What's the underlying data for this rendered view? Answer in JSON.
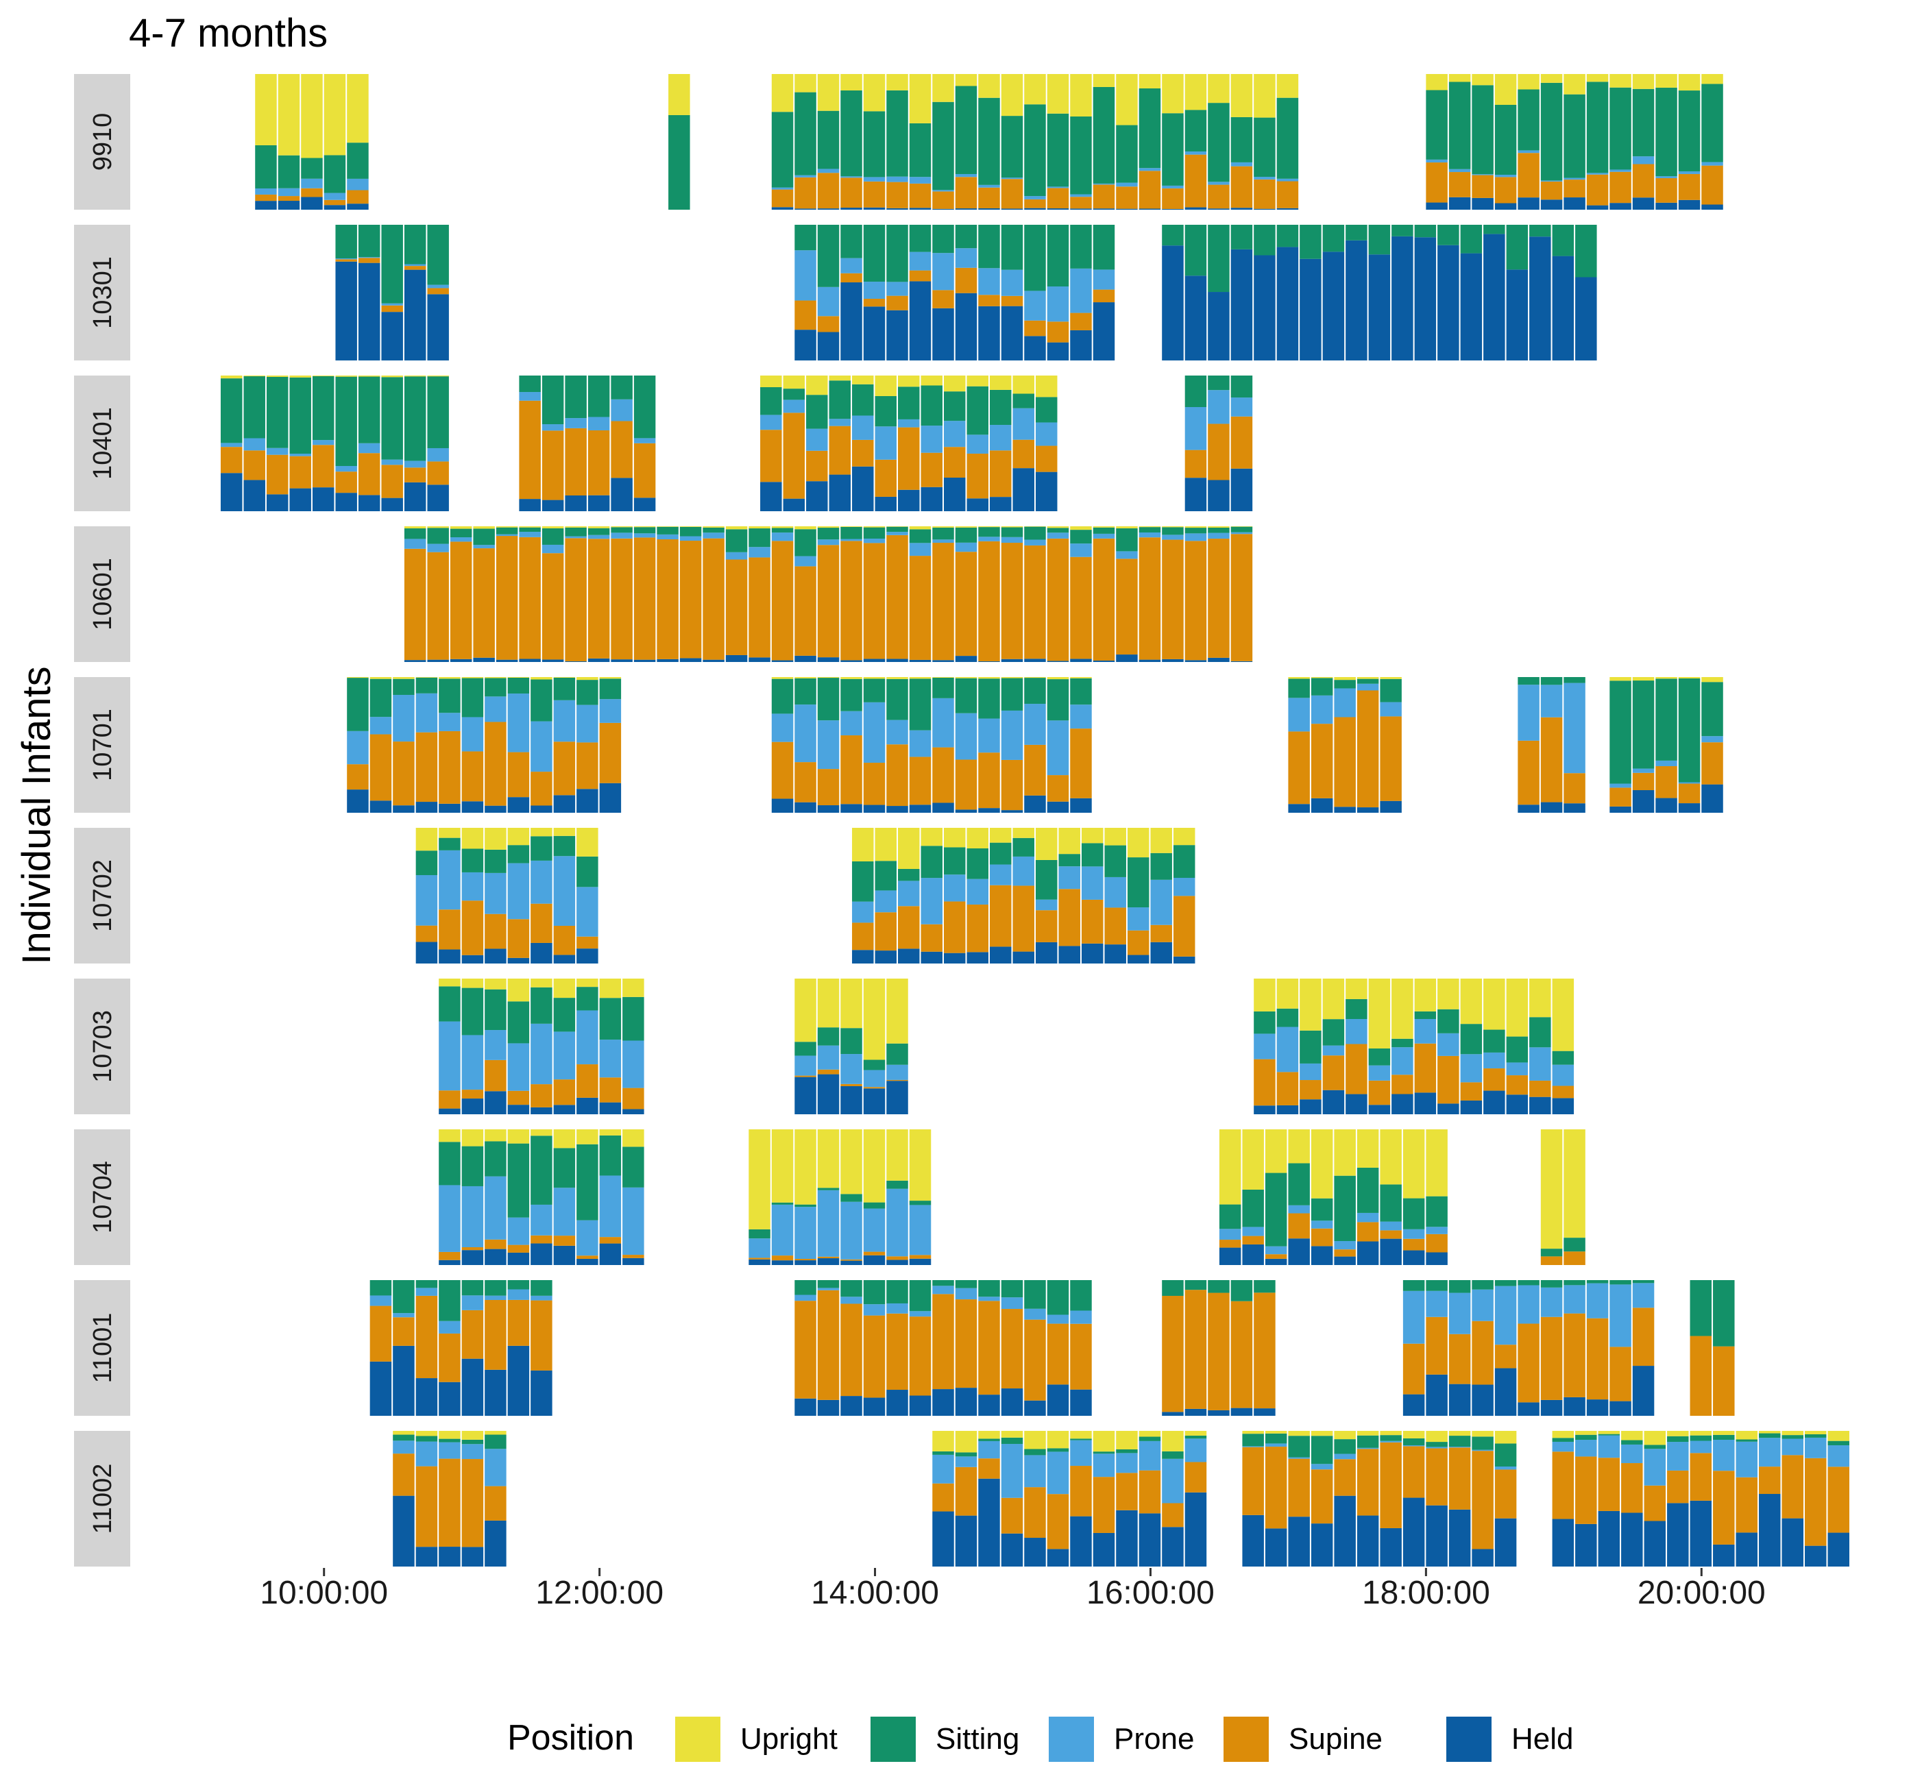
{
  "chart_data": {
    "type": "stacked-bar",
    "title": "4-7 months",
    "ylabel": "Individual Infants",
    "xlabel": "",
    "x_ticks": [
      "10:00:00",
      "12:00:00",
      "14:00:00",
      "16:00:00",
      "18:00:00",
      "20:00:00"
    ],
    "xlim": [
      "08:35:00",
      "21:05:00"
    ],
    "bin_minutes": 10,
    "ylim": [
      0,
      1
    ],
    "legend": {
      "title": "Position",
      "placement": "bottom",
      "entries": [
        "Upright",
        "Sitting",
        "Prone",
        "Supine",
        "Held"
      ]
    },
    "colors": {
      "Upright": "#EAE13A",
      "Sitting": "#139168",
      "Prone": "#4BA4DF",
      "Supine": "#DC8C09",
      "Held": "#0B5CA2"
    },
    "stack_order_bottom_to_top": [
      "Held",
      "Supine",
      "Prone",
      "Sitting",
      "Upright"
    ],
    "panels": [
      {
        "infant": "9910",
        "sessions": [
          {
            "start": "09:30",
            "end": "10:15",
            "avg": {
              "Upright": 0.55,
              "Sitting": 0.25,
              "Prone": 0.05,
              "Supine": 0.08,
              "Held": 0.07
            }
          },
          {
            "start": "12:30",
            "end": "12:40",
            "avg": {
              "Upright": 0.3,
              "Sitting": 0.7,
              "Prone": 0,
              "Supine": 0,
              "Held": 0
            }
          },
          {
            "start": "13:15",
            "end": "17:00",
            "avg": {
              "Upright": 0.25,
              "Sitting": 0.55,
              "Prone": 0.02,
              "Supine": 0.17,
              "Held": 0.01
            }
          },
          {
            "start": "18:00",
            "end": "20:10",
            "avg": {
              "Upright": 0.1,
              "Sitting": 0.6,
              "Prone": 0.02,
              "Supine": 0.22,
              "Held": 0.06
            }
          }
        ]
      },
      {
        "infant": "10301",
        "sessions": [
          {
            "start": "10:05",
            "end": "10:55",
            "avg": {
              "Upright": 0,
              "Sitting": 0.35,
              "Prone": 0.02,
              "Supine": 0.03,
              "Held": 0.6
            }
          },
          {
            "start": "13:25",
            "end": "15:40",
            "avg": {
              "Upright": 0,
              "Sitting": 0.35,
              "Prone": 0.2,
              "Supine": 0.1,
              "Held": 0.35
            }
          },
          {
            "start": "16:05",
            "end": "19:15",
            "avg": {
              "Upright": 0,
              "Sitting": 0.2,
              "Prone": 0,
              "Supine": 0,
              "Held": 0.8
            }
          }
        ]
      },
      {
        "infant": "10401",
        "sessions": [
          {
            "start": "09:15",
            "end": "10:50",
            "avg": {
              "Upright": 0.01,
              "Sitting": 0.55,
              "Prone": 0.05,
              "Supine": 0.24,
              "Held": 0.15
            }
          },
          {
            "start": "11:25",
            "end": "12:20",
            "avg": {
              "Upright": 0,
              "Sitting": 0.3,
              "Prone": 0.1,
              "Supine": 0.45,
              "Held": 0.15
            }
          },
          {
            "start": "13:10",
            "end": "15:15",
            "avg": {
              "Upright": 0.1,
              "Sitting": 0.2,
              "Prone": 0.15,
              "Supine": 0.35,
              "Held": 0.2
            }
          },
          {
            "start": "16:15",
            "end": "16:45",
            "avg": {
              "Upright": 0,
              "Sitting": 0.3,
              "Prone": 0.2,
              "Supine": 0.3,
              "Held": 0.2
            }
          }
        ]
      },
      {
        "infant": "10601",
        "sessions": [
          {
            "start": "10:35",
            "end": "16:45",
            "avg": {
              "Upright": 0.01,
              "Sitting": 0.08,
              "Prone": 0.04,
              "Supine": 0.85,
              "Held": 0.02
            }
          }
        ]
      },
      {
        "infant": "10701",
        "sessions": [
          {
            "start": "10:10",
            "end": "12:05",
            "avg": {
              "Upright": 0.01,
              "Sitting": 0.25,
              "Prone": 0.25,
              "Supine": 0.4,
              "Held": 0.09
            }
          },
          {
            "start": "13:15",
            "end": "15:30",
            "avg": {
              "Upright": 0.01,
              "Sitting": 0.25,
              "Prone": 0.3,
              "Supine": 0.38,
              "Held": 0.06
            }
          },
          {
            "start": "17:00",
            "end": "17:45",
            "avg": {
              "Upright": 0.01,
              "Sitting": 0.1,
              "Prone": 0.15,
              "Supine": 0.67,
              "Held": 0.07
            }
          },
          {
            "start": "18:40",
            "end": "19:05",
            "avg": {
              "Upright": 0,
              "Sitting": 0.05,
              "Prone": 0.5,
              "Supine": 0.4,
              "Held": 0.05
            }
          },
          {
            "start": "19:20",
            "end": "20:10",
            "avg": {
              "Upright": 0.02,
              "Sitting": 0.7,
              "Prone": 0.03,
              "Supine": 0.15,
              "Held": 0.1
            }
          }
        ]
      },
      {
        "infant": "10702",
        "sessions": [
          {
            "start": "10:40",
            "end": "11:55",
            "avg": {
              "Upright": 0.15,
              "Sitting": 0.15,
              "Prone": 0.35,
              "Supine": 0.25,
              "Held": 0.1
            }
          },
          {
            "start": "13:50",
            "end": "16:20",
            "avg": {
              "Upright": 0.2,
              "Sitting": 0.2,
              "Prone": 0.2,
              "Supine": 0.3,
              "Held": 0.1
            }
          }
        ]
      },
      {
        "infant": "10703",
        "sessions": [
          {
            "start": "10:50",
            "end": "12:15",
            "avg": {
              "Upright": 0.1,
              "Sitting": 0.25,
              "Prone": 0.4,
              "Supine": 0.15,
              "Held": 0.1
            }
          },
          {
            "start": "13:25",
            "end": "14:15",
            "avg": {
              "Upright": 0.45,
              "Sitting": 0.15,
              "Prone": 0.15,
              "Supine": 0.02,
              "Held": 0.23
            }
          },
          {
            "start": "16:45",
            "end": "19:00",
            "avg": {
              "Upright": 0.35,
              "Sitting": 0.15,
              "Prone": 0.15,
              "Supine": 0.25,
              "Held": 0.1
            }
          }
        ]
      },
      {
        "infant": "10704",
        "sessions": [
          {
            "start": "10:50",
            "end": "12:20",
            "avg": {
              "Upright": 0.1,
              "Sitting": 0.45,
              "Prone": 0.3,
              "Supine": 0.05,
              "Held": 0.1
            }
          },
          {
            "start": "13:05",
            "end": "14:25",
            "avg": {
              "Upright": 0.5,
              "Sitting": 0.05,
              "Prone": 0.35,
              "Supine": 0.03,
              "Held": 0.07
            }
          },
          {
            "start": "16:30",
            "end": "18:10",
            "avg": {
              "Upright": 0.35,
              "Sitting": 0.4,
              "Prone": 0.05,
              "Supine": 0.1,
              "Held": 0.1
            }
          },
          {
            "start": "18:50",
            "end": "19:10",
            "avg": {
              "Upright": 0.85,
              "Sitting": 0.1,
              "Prone": 0,
              "Supine": 0.05,
              "Held": 0
            }
          }
        ]
      },
      {
        "infant": "11001",
        "sessions": [
          {
            "start": "10:20",
            "end": "11:35",
            "avg": {
              "Upright": 0,
              "Sitting": 0.15,
              "Prone": 0.05,
              "Supine": 0.45,
              "Held": 0.35
            }
          },
          {
            "start": "13:25",
            "end": "15:30",
            "avg": {
              "Upright": 0,
              "Sitting": 0.12,
              "Prone": 0.05,
              "Supine": 0.7,
              "Held": 0.13
            }
          },
          {
            "start": "16:05",
            "end": "16:55",
            "avg": {
              "Upright": 0,
              "Sitting": 0.1,
              "Prone": 0,
              "Supine": 0.85,
              "Held": 0.05
            }
          },
          {
            "start": "17:50",
            "end": "19:40",
            "avg": {
              "Upright": 0,
              "Sitting": 0.05,
              "Prone": 0.3,
              "Supine": 0.45,
              "Held": 0.2
            }
          },
          {
            "start": "19:55",
            "end": "20:10",
            "avg": {
              "Upright": 0,
              "Sitting": 0.6,
              "Prone": 0,
              "Supine": 0.4,
              "Held": 0
            }
          }
        ]
      },
      {
        "infant": "11002",
        "sessions": [
          {
            "start": "10:30",
            "end": "11:20",
            "avg": {
              "Upright": 0.05,
              "Sitting": 0.05,
              "Prone": 0.15,
              "Supine": 0.45,
              "Held": 0.3
            }
          },
          {
            "start": "14:25",
            "end": "16:20",
            "avg": {
              "Upright": 0.1,
              "Sitting": 0.03,
              "Prone": 0.2,
              "Supine": 0.3,
              "Held": 0.37
            }
          },
          {
            "start": "16:40",
            "end": "18:35",
            "avg": {
              "Upright": 0.05,
              "Sitting": 0.1,
              "Prone": 0.02,
              "Supine": 0.5,
              "Held": 0.33
            }
          },
          {
            "start": "18:55",
            "end": "21:05",
            "avg": {
              "Upright": 0.05,
              "Sitting": 0.03,
              "Prone": 0.15,
              "Supine": 0.4,
              "Held": 0.37
            }
          }
        ]
      }
    ]
  }
}
